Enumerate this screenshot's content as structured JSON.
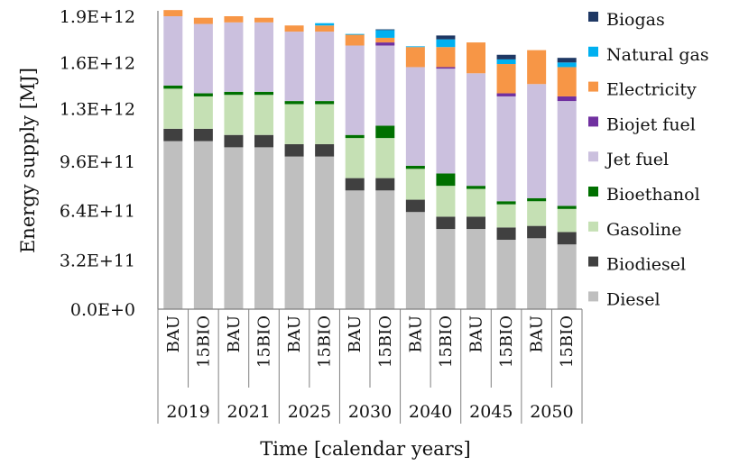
{
  "chart_data": {
    "type": "bar",
    "stacked": true,
    "title": "",
    "xlabel": "Time [calendar years]",
    "ylabel": "Energy supply [MJ]",
    "ylim": [
      0,
      1900000000000.0
    ],
    "yticks": [
      0,
      320000000000.0,
      640000000000.0,
      960000000000.0,
      1300000000000.0,
      1600000000000.0,
      1900000000000.0
    ],
    "ytick_labels": [
      "0.0E+0",
      "3.2E+11",
      "6.4E+11",
      "9.6E+11",
      "1.3E+12",
      "1.6E+12",
      "1.9E+12"
    ],
    "years": [
      "2019",
      "2021",
      "2025",
      "2030",
      "2040",
      "2045",
      "2050"
    ],
    "scenarios": [
      "BAU",
      "15BIO"
    ],
    "categories": [
      {
        "year": "2019",
        "scenario": "BAU"
      },
      {
        "year": "2019",
        "scenario": "15BIO"
      },
      {
        "year": "2021",
        "scenario": "BAU"
      },
      {
        "year": "2021",
        "scenario": "15BIO"
      },
      {
        "year": "2025",
        "scenario": "BAU"
      },
      {
        "year": "2025",
        "scenario": "15BIO"
      },
      {
        "year": "2030",
        "scenario": "BAU"
      },
      {
        "year": "2030",
        "scenario": "15BIO"
      },
      {
        "year": "2040",
        "scenario": "BAU"
      },
      {
        "year": "2040",
        "scenario": "15BIO"
      },
      {
        "year": "2045",
        "scenario": "BAU"
      },
      {
        "year": "2045",
        "scenario": "15BIO"
      },
      {
        "year": "2050",
        "scenario": "BAU"
      },
      {
        "year": "2050",
        "scenario": "15BIO"
      }
    ],
    "series": [
      {
        "name": "Diesel",
        "color": "#bfbfbf",
        "values": [
          1090000000000.0,
          1090000000000.0,
          1050000000000.0,
          1050000000000.0,
          990000000000.0,
          990000000000.0,
          770000000000.0,
          770000000000.0,
          630000000000.0,
          520000000000.0,
          520000000000.0,
          450000000000.0,
          460000000000.0,
          420000000000.0
        ]
      },
      {
        "name": "Biodiesel",
        "color": "#404040",
        "values": [
          80000000000.0,
          80000000000.0,
          80000000000.0,
          80000000000.0,
          80000000000.0,
          80000000000.0,
          80000000000.0,
          80000000000.0,
          80000000000.0,
          80000000000.0,
          80000000000.0,
          80000000000.0,
          80000000000.0,
          80000000000.0
        ]
      },
      {
        "name": "Gasoline",
        "color": "#c5e0b4",
        "values": [
          260000000000.0,
          210000000000.0,
          260000000000.0,
          260000000000.0,
          260000000000.0,
          260000000000.0,
          260000000000.0,
          260000000000.0,
          200000000000.0,
          200000000000.0,
          180000000000.0,
          150000000000.0,
          160000000000.0,
          150000000000.0
        ]
      },
      {
        "name": "Bioethanol",
        "color": "#007000",
        "values": [
          20000000000.0,
          20000000000.0,
          20000000000.0,
          20000000000.0,
          20000000000.0,
          20000000000.0,
          20000000000.0,
          80000000000.0,
          20000000000.0,
          80000000000.0,
          20000000000.0,
          20000000000.0,
          20000000000.0,
          20000000000.0
        ]
      },
      {
        "name": "Jet fuel",
        "color": "#cbc0de",
        "values": [
          450000000000.0,
          450000000000.0,
          450000000000.0,
          450000000000.0,
          450000000000.0,
          450000000000.0,
          580000000000.0,
          520000000000.0,
          640000000000.0,
          680000000000.0,
          730000000000.0,
          680000000000.0,
          740000000000.0,
          680000000000.0
        ]
      },
      {
        "name": "Biojet fuel",
        "color": "#7030a0",
        "values": [
          0,
          0,
          0,
          0,
          0,
          0,
          0,
          20000000000.0,
          0,
          10000000000.0,
          0,
          20000000000.0,
          0,
          30000000000.0
        ]
      },
      {
        "name": "Electricity",
        "color": "#f79646",
        "values": [
          40000000000.0,
          40000000000.0,
          40000000000.0,
          30000000000.0,
          40000000000.0,
          40000000000.0,
          70000000000.0,
          30000000000.0,
          130000000000.0,
          130000000000.0,
          200000000000.0,
          190000000000.0,
          220000000000.0,
          190000000000.0
        ]
      },
      {
        "name": "Natural gas",
        "color": "#00b0f0",
        "values": [
          0,
          0,
          0,
          0,
          0,
          15000000000.0,
          5000000000.0,
          50000000000.0,
          5000000000.0,
          50000000000.0,
          0,
          30000000000.0,
          0,
          30000000000.0
        ]
      },
      {
        "name": "Biogas",
        "color": "#1f3864",
        "values": [
          0,
          0,
          0,
          0,
          0,
          0,
          0,
          5000000000.0,
          0,
          25000000000.0,
          0,
          30000000000.0,
          0,
          30000000000.0
        ]
      }
    ],
    "legend_position": "right",
    "legend_order": [
      "Biogas",
      "Natural gas",
      "Electricity",
      "Biojet fuel",
      "Jet fuel",
      "Bioethanol",
      "Gasoline",
      "Biodiesel",
      "Diesel"
    ],
    "grid": false
  }
}
